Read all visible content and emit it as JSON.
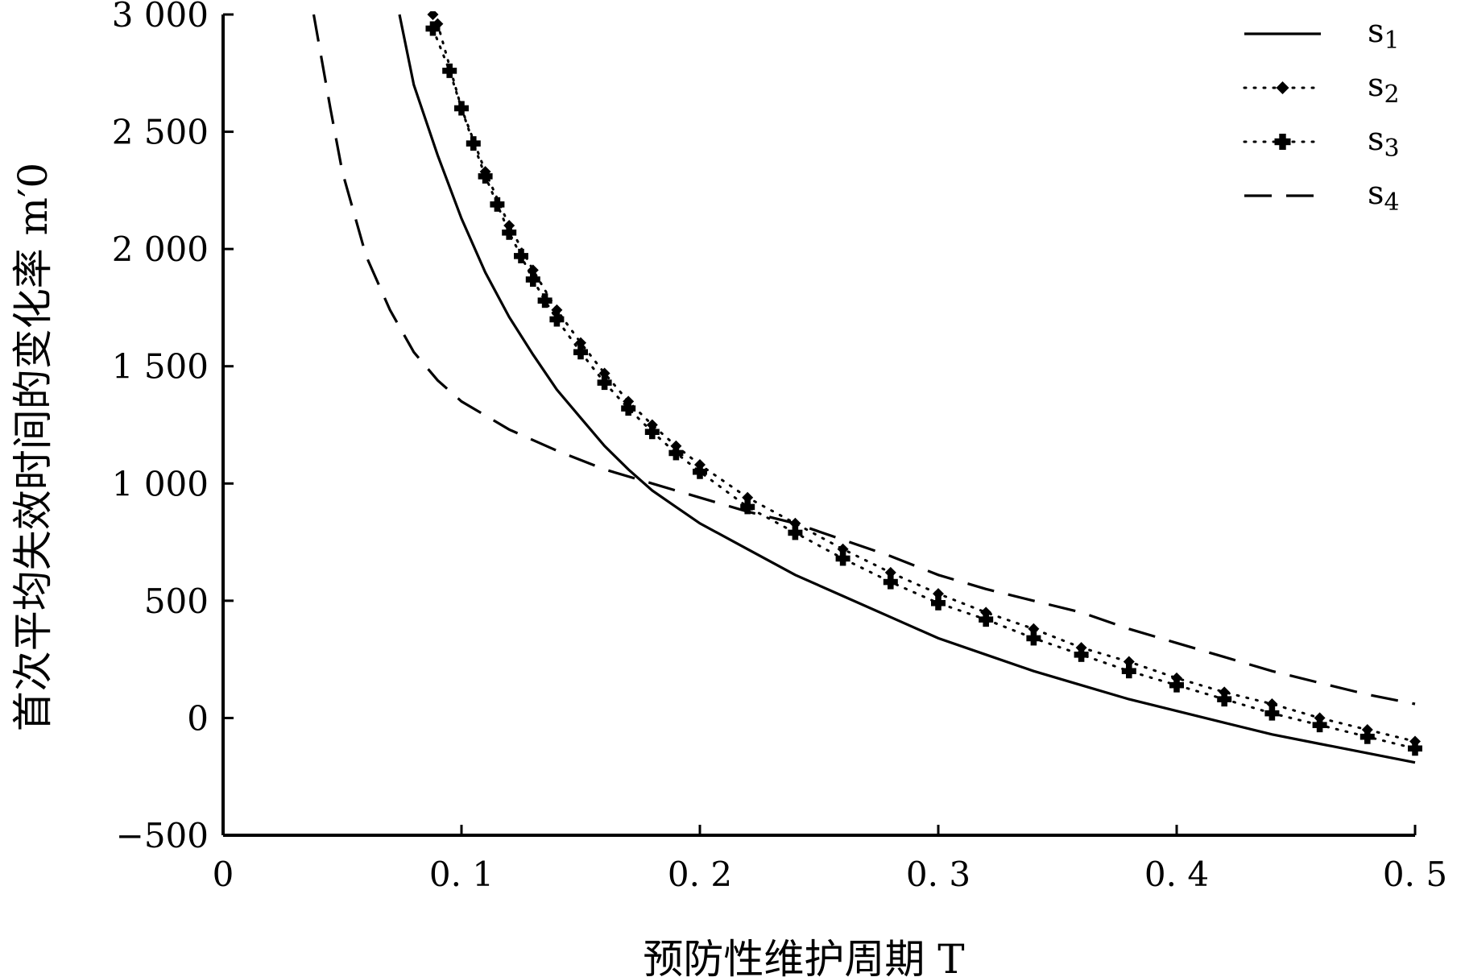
{
  "chart_data": {
    "type": "line",
    "title": "",
    "xlabel": "预防性维护周期 T",
    "ylabel": "首次平均失效时间的变化率 m′0",
    "xlim": [
      0,
      0.5
    ],
    "ylim": [
      -500,
      3000
    ],
    "x_ticks": [
      {
        "value": 0,
        "label": "0"
      },
      {
        "value": 0.1,
        "label": "0. 1"
      },
      {
        "value": 0.2,
        "label": "0. 2"
      },
      {
        "value": 0.3,
        "label": "0. 3"
      },
      {
        "value": 0.4,
        "label": "0. 4"
      },
      {
        "value": 0.5,
        "label": "0. 5"
      }
    ],
    "y_ticks": [
      {
        "value": 3000,
        "label": "3 000"
      },
      {
        "value": 2500,
        "label": "2 500"
      },
      {
        "value": 2000,
        "label": "2 000"
      },
      {
        "value": 1500,
        "label": "1 500"
      },
      {
        "value": 1000,
        "label": "1 000"
      },
      {
        "value": 500,
        "label": "500"
      },
      {
        "value": 0,
        "label": "0"
      },
      {
        "value": -500,
        "label": "−500"
      }
    ],
    "grid": false,
    "legend_position": "top-right",
    "series": [
      {
        "name": "s1",
        "style": "solid",
        "color": "#000000",
        "points": [
          [
            0.074,
            3000
          ],
          [
            0.08,
            2700
          ],
          [
            0.09,
            2400
          ],
          [
            0.1,
            2130
          ],
          [
            0.11,
            1900
          ],
          [
            0.12,
            1710
          ],
          [
            0.13,
            1550
          ],
          [
            0.14,
            1400
          ],
          [
            0.15,
            1280
          ],
          [
            0.16,
            1160
          ],
          [
            0.17,
            1060
          ],
          [
            0.18,
            970
          ],
          [
            0.19,
            900
          ],
          [
            0.2,
            830
          ],
          [
            0.22,
            720
          ],
          [
            0.24,
            610
          ],
          [
            0.26,
            520
          ],
          [
            0.28,
            430
          ],
          [
            0.3,
            340
          ],
          [
            0.32,
            270
          ],
          [
            0.34,
            200
          ],
          [
            0.36,
            140
          ],
          [
            0.38,
            80
          ],
          [
            0.4,
            30
          ],
          [
            0.42,
            -20
          ],
          [
            0.44,
            -70
          ],
          [
            0.46,
            -110
          ],
          [
            0.48,
            -150
          ],
          [
            0.5,
            -190
          ]
        ]
      },
      {
        "name": "s2",
        "style": "dotted-diamond",
        "color": "#000000",
        "points": [
          [
            0.088,
            3000
          ],
          [
            0.09,
            2960
          ],
          [
            0.1,
            2600
          ],
          [
            0.11,
            2330
          ],
          [
            0.12,
            2100
          ],
          [
            0.13,
            1910
          ],
          [
            0.14,
            1740
          ],
          [
            0.15,
            1600
          ],
          [
            0.16,
            1470
          ],
          [
            0.17,
            1350
          ],
          [
            0.18,
            1250
          ],
          [
            0.19,
            1160
          ],
          [
            0.2,
            1080
          ],
          [
            0.22,
            940
          ],
          [
            0.24,
            830
          ],
          [
            0.26,
            720
          ],
          [
            0.28,
            620
          ],
          [
            0.3,
            530
          ],
          [
            0.32,
            450
          ],
          [
            0.34,
            380
          ],
          [
            0.36,
            300
          ],
          [
            0.38,
            240
          ],
          [
            0.4,
            170
          ],
          [
            0.42,
            110
          ],
          [
            0.44,
            60
          ],
          [
            0.46,
            0
          ],
          [
            0.48,
            -50
          ],
          [
            0.5,
            -100
          ]
        ]
      },
      {
        "name": "s3",
        "style": "dotted-cross",
        "color": "#000000",
        "points": [
          [
            0.088,
            2940
          ],
          [
            0.095,
            2760
          ],
          [
            0.1,
            2600
          ],
          [
            0.105,
            2450
          ],
          [
            0.11,
            2310
          ],
          [
            0.115,
            2190
          ],
          [
            0.12,
            2070
          ],
          [
            0.125,
            1970
          ],
          [
            0.13,
            1870
          ],
          [
            0.135,
            1780
          ],
          [
            0.14,
            1700
          ],
          [
            0.15,
            1560
          ],
          [
            0.16,
            1430
          ],
          [
            0.17,
            1320
          ],
          [
            0.18,
            1220
          ],
          [
            0.19,
            1130
          ],
          [
            0.2,
            1050
          ],
          [
            0.22,
            900
          ],
          [
            0.24,
            790
          ],
          [
            0.26,
            680
          ],
          [
            0.28,
            580
          ],
          [
            0.3,
            490
          ],
          [
            0.32,
            420
          ],
          [
            0.34,
            340
          ],
          [
            0.36,
            270
          ],
          [
            0.38,
            200
          ],
          [
            0.4,
            140
          ],
          [
            0.42,
            80
          ],
          [
            0.44,
            20
          ],
          [
            0.46,
            -30
          ],
          [
            0.48,
            -80
          ],
          [
            0.5,
            -130
          ]
        ]
      },
      {
        "name": "s4",
        "style": "dashed",
        "color": "#000000",
        "points": [
          [
            0.038,
            3000
          ],
          [
            0.045,
            2600
          ],
          [
            0.05,
            2330
          ],
          [
            0.06,
            1970
          ],
          [
            0.07,
            1740
          ],
          [
            0.08,
            1560
          ],
          [
            0.09,
            1440
          ],
          [
            0.1,
            1350
          ],
          [
            0.12,
            1230
          ],
          [
            0.14,
            1140
          ],
          [
            0.16,
            1060
          ],
          [
            0.18,
            1000
          ],
          [
            0.2,
            940
          ],
          [
            0.22,
            880
          ],
          [
            0.24,
            830
          ],
          [
            0.26,
            760
          ],
          [
            0.28,
            690
          ],
          [
            0.3,
            610
          ],
          [
            0.32,
            550
          ],
          [
            0.34,
            500
          ],
          [
            0.36,
            450
          ],
          [
            0.38,
            380
          ],
          [
            0.4,
            320
          ],
          [
            0.42,
            260
          ],
          [
            0.44,
            200
          ],
          [
            0.46,
            150
          ],
          [
            0.48,
            100
          ],
          [
            0.5,
            60
          ]
        ]
      }
    ]
  }
}
